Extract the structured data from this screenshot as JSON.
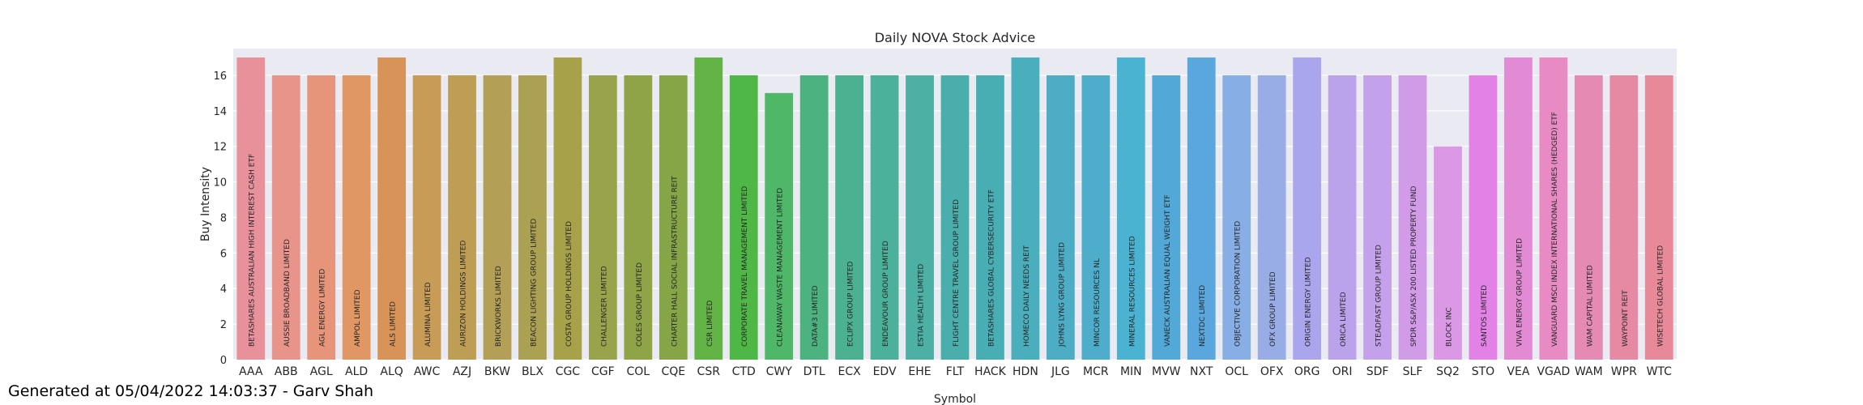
{
  "footer": {
    "generated_text": "Generated at 05/04/2022 14:03:37 - Garv Shah"
  },
  "chart_data": {
    "type": "bar",
    "title": "Daily NOVA Stock Advice",
    "xlabel": "Symbol",
    "ylabel": "Buy Intensity",
    "ylim": [
      0,
      17.5
    ],
    "yticks": [
      0,
      2,
      4,
      6,
      8,
      10,
      12,
      14,
      16
    ],
    "grid": true,
    "background": "#eaeaf2",
    "categories": [
      "AAA",
      "ABB",
      "AGL",
      "ALD",
      "ALQ",
      "AWC",
      "AZJ",
      "BKW",
      "BLX",
      "CGC",
      "CGF",
      "COL",
      "CQE",
      "CSR",
      "CTD",
      "CWY",
      "DTL",
      "ECX",
      "EDV",
      "EHE",
      "FLT",
      "HACK",
      "HDN",
      "JLG",
      "MCR",
      "MIN",
      "MVW",
      "NXT",
      "OCL",
      "OFX",
      "ORG",
      "ORI",
      "SDF",
      "SLF",
      "SQ2",
      "STO",
      "VEA",
      "VGAD",
      "WAM",
      "WPR",
      "WTC"
    ],
    "values": [
      17,
      16,
      16,
      16,
      17,
      16,
      16,
      16,
      16,
      17,
      16,
      16,
      16,
      17,
      16,
      15,
      16,
      16,
      16,
      16,
      16,
      16,
      17,
      16,
      16,
      17,
      16,
      17,
      16,
      16,
      17,
      16,
      16,
      16,
      12,
      16,
      17,
      17,
      16,
      16,
      16
    ],
    "bar_labels": [
      "BETASHARES AUSTRALIAN HIGH INTEREST CASH ETF",
      "AUSSIE BROADBAND LIMITED",
      "AGL ENERGY LIMITED",
      "AMPOL LIMITED",
      "ALS LIMITED",
      "ALUMINA LIMITED",
      "AURIZON HOLDINGS LIMITED",
      "BRICKWORKS LIMITED",
      "BEACON LIGHTING GROUP LIMITED",
      "COSTA GROUP HOLDINGS LIMITED",
      "CHALLENGER LIMITED",
      "COLES GROUP LIMITED",
      "CHARTER HALL SOCIAL INFRASTRUCTURE REIT",
      "CSR LIMITED",
      "CORPORATE TRAVEL MANAGEMENT LIMITED",
      "CLEANAWAY WASTE MANAGEMENT LIMITED",
      "DATA#3 LIMITED",
      "ECLIPX GROUP LIMITED",
      "ENDEAVOUR GROUP LIMITED",
      "ESTIA HEALTH LIMITED",
      "FLIGHT CENTRE TRAVEL GROUP LIMITED",
      "BETASHARES GLOBAL CYBERSECURITY ETF",
      "HOMECO DAILY NEEDS REIT",
      "JOHNS LYNG GROUP LIMITED",
      "MINCOR RESOURCES NL",
      "MINERAL RESOURCES LIMITED",
      "VANECK AUSTRALIAN EQUAL WEIGHT ETF",
      "NEXTDC LIMITED",
      "OBJECTIVE CORPORATION LIMITED",
      "OFX GROUP LIMITED",
      "ORIGIN ENERGY LIMITED",
      "ORICA LIMITED",
      "STEADFAST GROUP LIMITED",
      "SPDR S&P/ASX 200 LISTED PROPERTY FUND",
      "BLOCK INC",
      "SANTOS LIMITED",
      "VIVA ENERGY GROUP LIMITED",
      "VANGUARD MSCI INDEX INTERNATIONAL SHARES (HEDGED) ETF",
      "WAM CAPITAL LIMITED",
      "WAYPOINT REIT",
      "WISETECH GLOBAL LIMITED"
    ],
    "colors": [
      "#e8919b",
      "#e8948a",
      "#e6957a",
      "#e09764",
      "#d89458",
      "#c89b56",
      "#be9d55",
      "#b39f55",
      "#aca052",
      "#a7a24a",
      "#99a34b",
      "#8fa447",
      "#86a547",
      "#63b446",
      "#4fb746",
      "#4fb768",
      "#4cb27f",
      "#4bb191",
      "#4cb19a",
      "#4cb0a4",
      "#4aafac",
      "#49aeb4",
      "#4aaebc",
      "#4dadc4",
      "#4dadcb",
      "#4ab3d2",
      "#52a9d8",
      "#5aa7de",
      "#88aee6",
      "#98ace6",
      "#aaa6ed",
      "#bba3ec",
      "#c4a1eb",
      "#d19be8",
      "#db99e5",
      "#e281e6",
      "#e38ad4",
      "#e88bc4",
      "#e58ab3",
      "#e68aa3",
      "#e8899a"
    ]
  }
}
